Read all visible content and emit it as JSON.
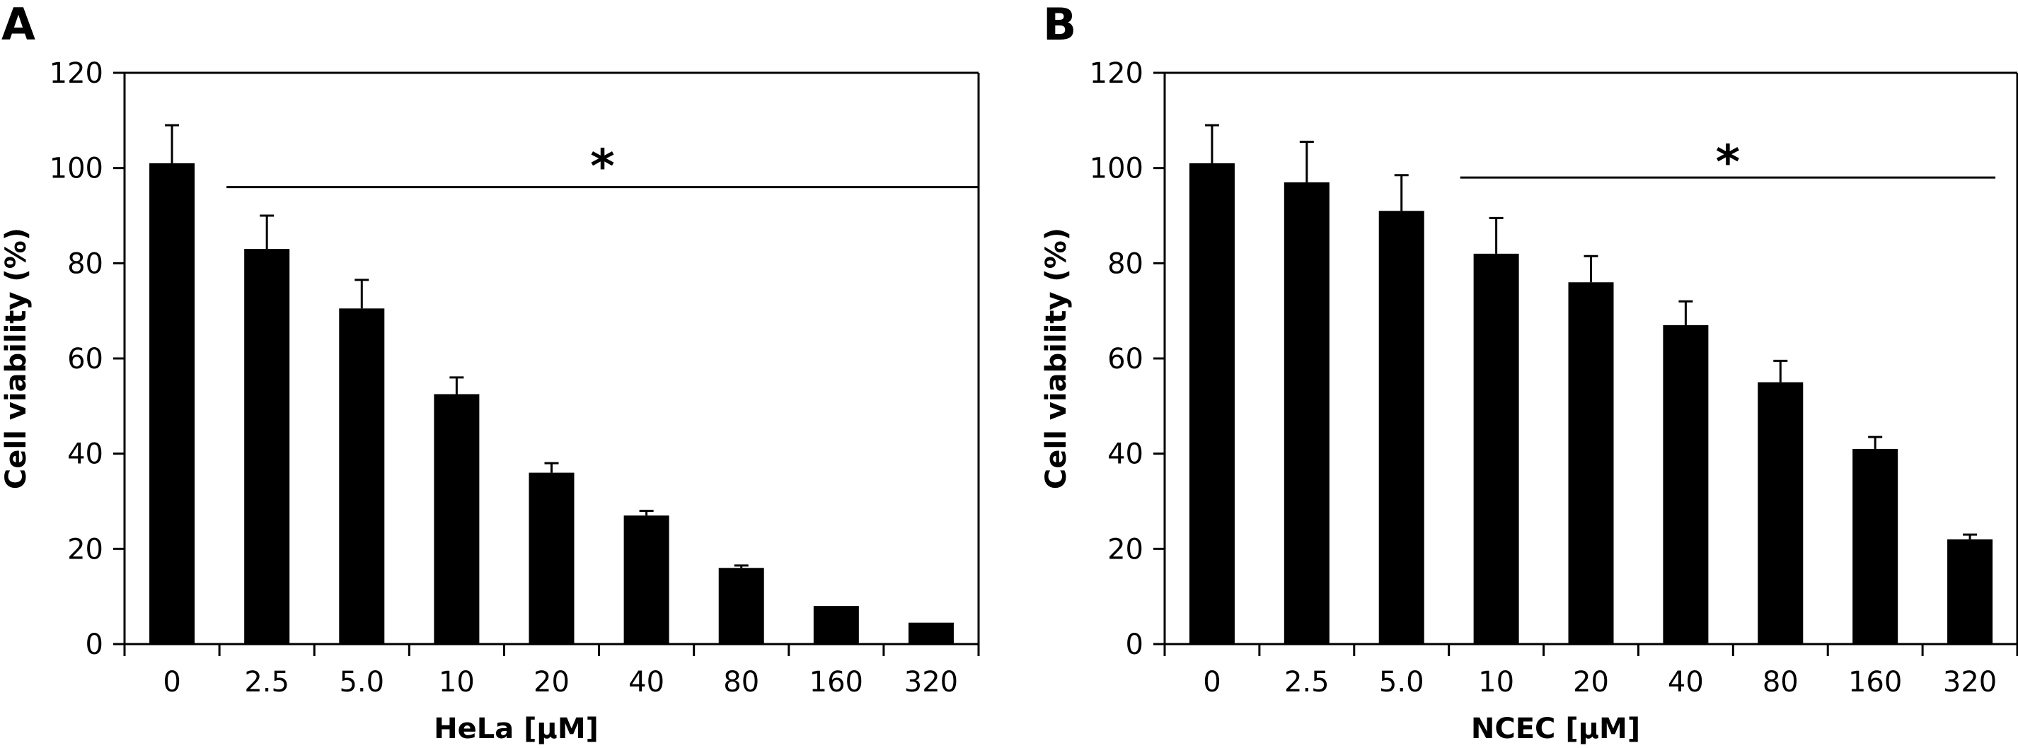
{
  "chart_data": [
    {
      "type": "bar",
      "panel_label": "A",
      "xlabel": "HeLa [µM]",
      "ylabel": "Cell viability (%)",
      "ylim": [
        0,
        120
      ],
      "yticks": [
        0,
        20,
        40,
        60,
        80,
        100,
        120
      ],
      "categories": [
        "0",
        "2.5",
        "5.0",
        "10",
        "20",
        "40",
        "80",
        "160",
        "320"
      ],
      "values": [
        101,
        83,
        70.5,
        52.5,
        36,
        27,
        16,
        8,
        4.5
      ],
      "errors": [
        8,
        7,
        6,
        3.5,
        2,
        1,
        0.5,
        0,
        0
      ],
      "bar_color": "#000000",
      "significance": {
        "label": "*",
        "from_category": "2.5",
        "to_category": "320",
        "y": 96
      }
    },
    {
      "type": "bar",
      "panel_label": "B",
      "xlabel": "NCEC [µM]",
      "ylabel": "Cell viability (%)",
      "ylim": [
        0,
        120
      ],
      "yticks": [
        0,
        20,
        40,
        60,
        80,
        100,
        120
      ],
      "categories": [
        "0",
        "2.5",
        "5.0",
        "10",
        "20",
        "40",
        "80",
        "160",
        "320"
      ],
      "values": [
        101,
        97,
        91,
        82,
        76,
        67,
        55,
        41,
        22
      ],
      "errors": [
        8,
        8.5,
        7.5,
        7.5,
        5.5,
        5,
        4.5,
        2.5,
        1
      ],
      "bar_color": "#000000",
      "significance": {
        "label": "*",
        "from_category": "10",
        "to_category": "320",
        "y": 98
      }
    }
  ]
}
